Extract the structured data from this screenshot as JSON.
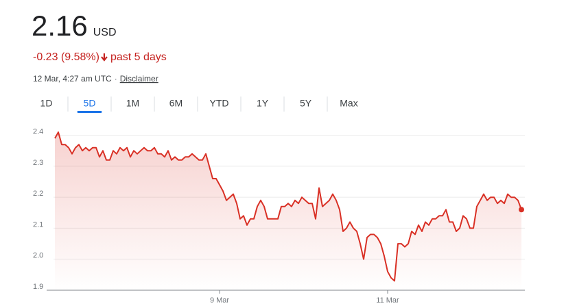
{
  "price": "2.16",
  "currency": "USD",
  "change": "-0.23 (9.58%)",
  "period": "past 5 days",
  "timestamp": "12 Mar, 4:27 am UTC",
  "separator": "·",
  "disclaimer": "Disclaimer",
  "tabs": [
    "1D",
    "5D",
    "1M",
    "6M",
    "YTD",
    "1Y",
    "5Y",
    "Max"
  ],
  "active_tab": 1,
  "chart_data": {
    "type": "line",
    "color": "#d93025",
    "categories": [
      null,
      null,
      null,
      null,
      null,
      null,
      null,
      null,
      null,
      null,
      null,
      null,
      null,
      null,
      null,
      null,
      null,
      null,
      null,
      null,
      null,
      null,
      null,
      null,
      null,
      null,
      null,
      null,
      null,
      null,
      null,
      null,
      null,
      null,
      null,
      null,
      null,
      null,
      null,
      null,
      null,
      null,
      null,
      null,
      null,
      null,
      null,
      null,
      "9 Mar",
      null,
      null,
      null,
      null,
      null,
      null,
      null,
      null,
      null,
      null,
      null,
      null,
      null,
      null,
      null,
      null,
      null,
      null,
      null,
      null,
      null,
      null,
      null,
      null,
      null,
      null,
      null,
      null,
      null,
      null,
      null,
      null,
      null,
      null,
      null,
      null,
      null,
      null,
      null,
      null,
      null,
      null,
      null,
      null,
      null,
      null,
      null,
      null,
      "11 Mar",
      null,
      null,
      null,
      null,
      null,
      null,
      null,
      null,
      null,
      null,
      null,
      null,
      null,
      null,
      null,
      null,
      null,
      null,
      null,
      null,
      null,
      null,
      null,
      null,
      null,
      null,
      null,
      null,
      null,
      null,
      null,
      null,
      null,
      null,
      null,
      null,
      null,
      null,
      null
    ],
    "values": [
      2.39,
      2.41,
      2.37,
      2.37,
      2.36,
      2.34,
      2.36,
      2.37,
      2.35,
      2.36,
      2.35,
      2.36,
      2.36,
      2.33,
      2.35,
      2.32,
      2.32,
      2.35,
      2.34,
      2.36,
      2.35,
      2.36,
      2.33,
      2.35,
      2.34,
      2.35,
      2.36,
      2.35,
      2.35,
      2.36,
      2.34,
      2.34,
      2.33,
      2.35,
      2.32,
      2.33,
      2.32,
      2.32,
      2.33,
      2.33,
      2.34,
      2.33,
      2.32,
      2.32,
      2.34,
      2.3,
      2.26,
      2.26,
      2.24,
      2.22,
      2.19,
      2.2,
      2.21,
      2.18,
      2.13,
      2.14,
      2.11,
      2.13,
      2.13,
      2.17,
      2.19,
      2.17,
      2.13,
      2.13,
      2.13,
      2.13,
      2.17,
      2.17,
      2.18,
      2.17,
      2.19,
      2.18,
      2.2,
      2.19,
      2.18,
      2.18,
      2.13,
      2.23,
      2.17,
      2.18,
      2.19,
      2.21,
      2.19,
      2.16,
      2.09,
      2.1,
      2.12,
      2.1,
      2.09,
      2.05,
      2.0,
      2.07,
      2.08,
      2.08,
      2.07,
      2.05,
      2.01,
      1.96,
      1.94,
      1.93,
      2.05,
      2.05,
      2.04,
      2.05,
      2.09,
      2.08,
      2.11,
      2.09,
      2.12,
      2.11,
      2.13,
      2.13,
      2.14,
      2.14,
      2.16,
      2.12,
      2.12,
      2.09,
      2.1,
      2.14,
      2.13,
      2.1,
      2.1,
      2.17,
      2.19,
      2.21,
      2.19,
      2.2,
      2.2,
      2.18,
      2.19,
      2.18,
      2.21,
      2.2,
      2.2,
      2.19,
      2.16
    ],
    "ylim": [
      1.9,
      2.43
    ],
    "yticks": [
      1.9,
      {
        "value": 2,
        "label": "2.0"
      },
      2.1,
      2.2,
      2.3,
      2.4
    ],
    "grid": true
  }
}
